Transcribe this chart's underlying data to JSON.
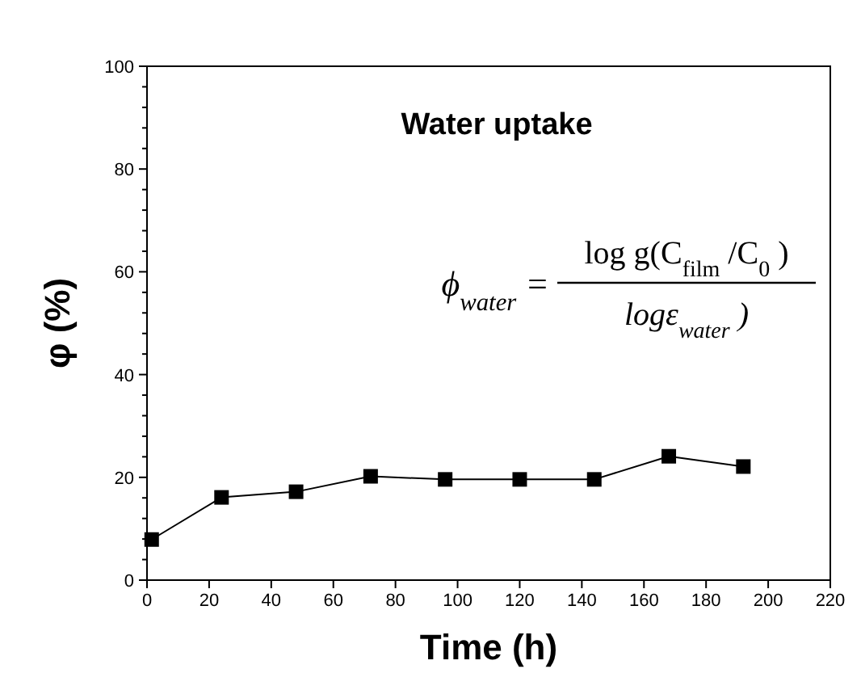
{
  "chart_data": {
    "type": "line",
    "title": "Water uptake",
    "xlabel": "Time (h)",
    "ylabel": "φ (%)",
    "annotations": [
      "ϕ$_{water}$ =",
      "log g(C$_{film}$/C$_{0}$)",
      "logε$_{water}$)"
    ],
    "x": [
      1.5,
      24,
      48,
      72,
      96,
      120,
      144,
      168,
      192
    ],
    "series": [
      {
        "color": "#000000",
        "values": [
          7.9,
          16.1,
          17.2,
          20.2,
          19.6,
          19.6,
          19.6,
          24.1,
          22.1
        ]
      }
    ],
    "xlim": [
      0,
      220
    ],
    "xticks": [
      0,
      20,
      40,
      60,
      80,
      100,
      120,
      140,
      160,
      180,
      200,
      220
    ],
    "ylim": [
      0,
      100
    ],
    "yticks": [
      0,
      {
        "value": 4,
        "label": null
      },
      {
        "value": 8,
        "label": null
      },
      {
        "value": 12,
        "label": null
      },
      {
        "value": 16,
        "label": null
      },
      20,
      {
        "value": 24,
        "label": null
      },
      {
        "value": 28,
        "label": null
      },
      {
        "value": 32,
        "label": null
      },
      {
        "value": 36,
        "label": null
      },
      40,
      {
        "value": 44,
        "label": null
      },
      {
        "value": 48,
        "label": null
      },
      {
        "value": 52,
        "label": null
      },
      {
        "value": 56,
        "label": null
      },
      60,
      {
        "value": 64,
        "label": null
      },
      {
        "value": 68,
        "label": null
      },
      {
        "value": 72,
        "label": null
      },
      {
        "value": 76,
        "label": null
      },
      80,
      {
        "value": 84,
        "label": null
      },
      {
        "value": 88,
        "label": null
      },
      {
        "value": 92,
        "label": null
      },
      {
        "value": 96,
        "label": null
      },
      100
    ],
    "marker": "square",
    "line_style": "solid",
    "grid": false
  }
}
